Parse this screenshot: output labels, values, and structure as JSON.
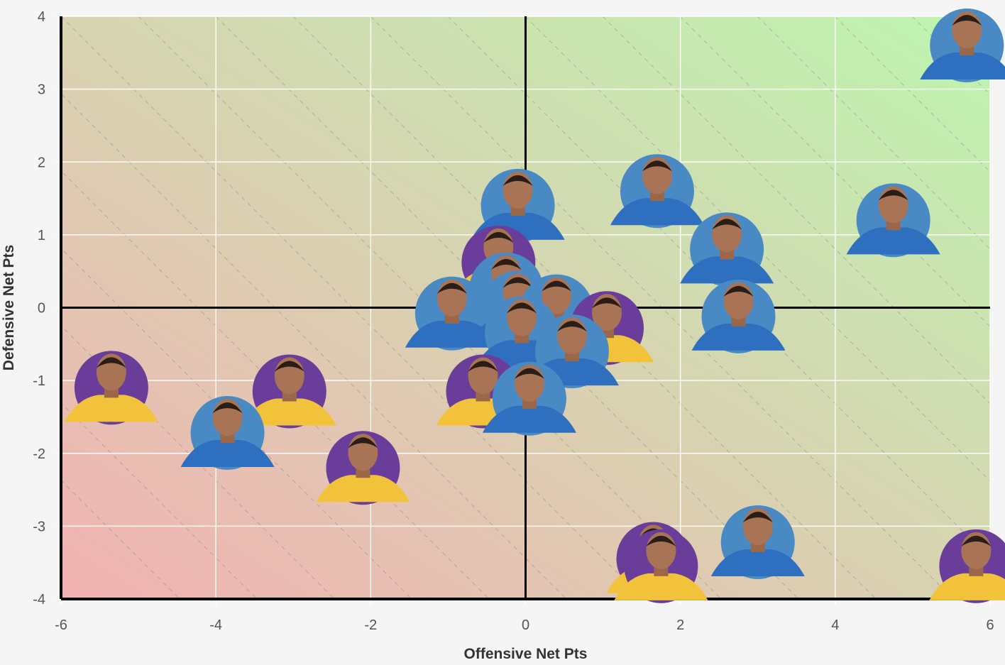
{
  "chart_data": {
    "type": "scatter",
    "title": "",
    "xlabel": "Offensive Net Pts",
    "ylabel": "Defensive Net Pts",
    "xlim": [
      -6,
      6
    ],
    "ylim": [
      -4,
      4
    ],
    "x_ticks": [
      "-6",
      "-4",
      "-2",
      "0",
      "2",
      "4",
      "6"
    ],
    "y_ticks": [
      "4",
      "3",
      "2",
      "1",
      "0",
      "-1",
      "-2",
      "-3",
      "-4"
    ],
    "grid": true,
    "quadrant_lines": true,
    "background_gradient": [
      "#f2b2b2",
      "#bdf5b0"
    ],
    "marker_colors": {
      "blue": "#4a8ac4",
      "purple": "#6a3d9a"
    },
    "points": [
      {
        "x": 5.7,
        "y": 3.6,
        "color": "blue"
      },
      {
        "x": 1.7,
        "y": 1.6,
        "color": "blue"
      },
      {
        "x": 4.75,
        "y": 1.2,
        "color": "blue"
      },
      {
        "x": 2.6,
        "y": 0.8,
        "color": "blue"
      },
      {
        "x": 2.75,
        "y": -0.12,
        "color": "blue"
      },
      {
        "x": -0.1,
        "y": 1.4,
        "color": "blue"
      },
      {
        "x": -0.35,
        "y": 0.62,
        "color": "purple"
      },
      {
        "x": -0.25,
        "y": 0.25,
        "color": "blue"
      },
      {
        "x": -0.95,
        "y": -0.08,
        "color": "blue"
      },
      {
        "x": -0.1,
        "y": 0.0,
        "color": "blue"
      },
      {
        "x": 0.4,
        "y": -0.05,
        "color": "blue"
      },
      {
        "x": 1.05,
        "y": -0.28,
        "color": "purple"
      },
      {
        "x": -0.05,
        "y": -0.35,
        "color": "blue"
      },
      {
        "x": 0.6,
        "y": -0.6,
        "color": "blue"
      },
      {
        "x": -0.55,
        "y": -1.15,
        "color": "purple"
      },
      {
        "x": 0.05,
        "y": -1.25,
        "color": "blue"
      },
      {
        "x": -5.35,
        "y": -1.1,
        "color": "purple"
      },
      {
        "x": -3.05,
        "y": -1.15,
        "color": "purple"
      },
      {
        "x": -3.85,
        "y": -1.72,
        "color": "blue"
      },
      {
        "x": -2.1,
        "y": -2.2,
        "color": "purple"
      },
      {
        "x": 1.65,
        "y": -3.45,
        "color": "purple"
      },
      {
        "x": 1.75,
        "y": -3.55,
        "color": "purple"
      },
      {
        "x": 3.0,
        "y": -3.22,
        "color": "blue"
      },
      {
        "x": 5.82,
        "y": -3.55,
        "color": "purple"
      }
    ]
  }
}
